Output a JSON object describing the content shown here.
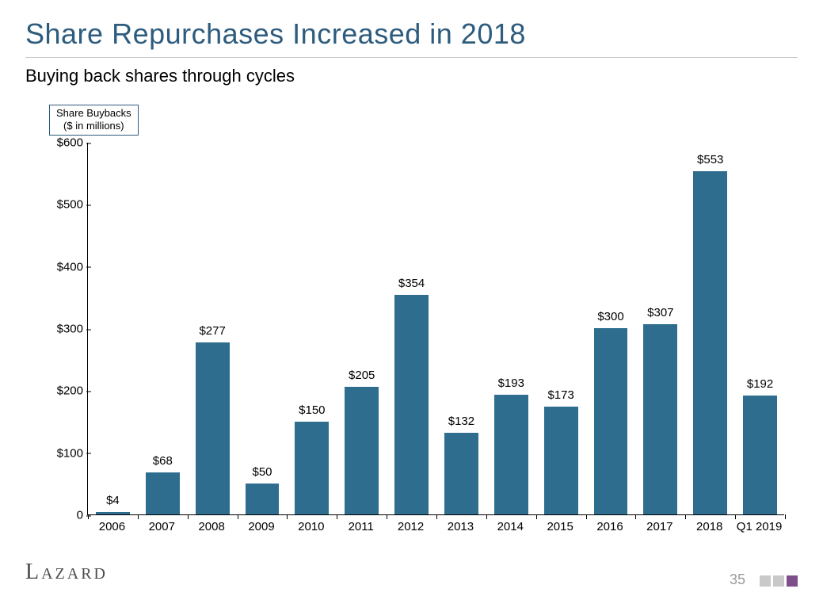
{
  "title": "Share Repurchases Increased in 2018",
  "subtitle": "Buying back shares through cycles",
  "legend": {
    "line1": "Share Buybacks",
    "line2": "($ in millions)"
  },
  "chart": {
    "type": "bar",
    "y_axis": {
      "min": 0,
      "max": 600,
      "step": 100,
      "prefix": "$",
      "zero_prefix": ""
    },
    "bar_color": "#2e6d8e",
    "bar_width_ratio": 0.68,
    "background_color": "#ffffff",
    "axis_color": "#000000",
    "label_fontsize": 15,
    "title_color": "#2e5c7e",
    "categories": [
      "2006",
      "2007",
      "2008",
      "2009",
      "2010",
      "2011",
      "2012",
      "2013",
      "2014",
      "2015",
      "2016",
      "2017",
      "2018",
      "Q1 2019"
    ],
    "values": [
      4,
      68,
      277,
      50,
      150,
      205,
      354,
      132,
      193,
      173,
      300,
      307,
      553,
      192
    ],
    "value_labels": [
      "$4",
      "$68",
      "$277",
      "$50",
      "$150",
      "$205",
      "$354",
      "$132",
      "$193",
      "$173",
      "$300",
      "$307",
      "$553",
      "$192"
    ]
  },
  "footer": {
    "logo": "Lazard",
    "page": "35",
    "dot_colors": [
      "#c9c9c9",
      "#c9c9c9",
      "#7d4f8b"
    ]
  }
}
